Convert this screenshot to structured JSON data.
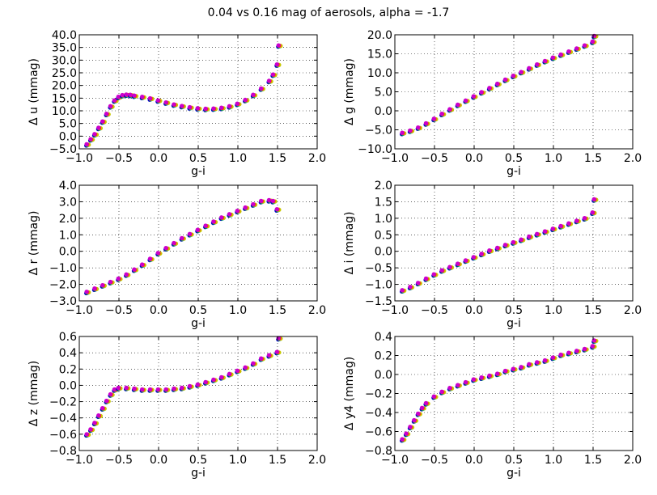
{
  "figure_title": "0.04 vs 0.16 mag of aerosols, alpha = -1.7",
  "colors": {
    "series": [
      "#0000cc",
      "#007f3f",
      "#00b2b2",
      "#c8c800",
      "#ff2020",
      "#cc00cc"
    ],
    "grid": "#000000",
    "axes": "#000000"
  },
  "chart_data": [
    {
      "type": "scatter",
      "xlabel": "g-i",
      "ylabel": "Δ u (mmag)",
      "xlim": [
        -1.0,
        2.0
      ],
      "ylim": [
        -5.0,
        40.0
      ],
      "xticks": [
        "−1.0",
        "−0.5",
        "0.0",
        "0.5",
        "1.0",
        "1.5",
        "2.0"
      ],
      "yticks": [
        "−5.0",
        "0.0",
        "5.0",
        "10.0",
        "15.0",
        "20.0",
        "25.0",
        "30.0",
        "35.0",
        "40.0"
      ],
      "grid": true,
      "points": [
        [
          -0.9,
          -3.5
        ],
        [
          -0.85,
          -1.5
        ],
        [
          -0.8,
          0.5
        ],
        [
          -0.75,
          3.0
        ],
        [
          -0.7,
          5.5
        ],
        [
          -0.65,
          8.5
        ],
        [
          -0.6,
          11.5
        ],
        [
          -0.55,
          13.8
        ],
        [
          -0.5,
          15.2
        ],
        [
          -0.45,
          15.9
        ],
        [
          -0.4,
          16.1
        ],
        [
          -0.35,
          16.0
        ],
        [
          -0.3,
          15.7
        ],
        [
          -0.2,
          15.2
        ],
        [
          -0.1,
          14.6
        ],
        [
          0.0,
          13.8
        ],
        [
          0.1,
          13.0
        ],
        [
          0.2,
          12.2
        ],
        [
          0.3,
          11.6
        ],
        [
          0.4,
          11.1
        ],
        [
          0.5,
          10.7
        ],
        [
          0.6,
          10.5
        ],
        [
          0.7,
          10.6
        ],
        [
          0.8,
          10.9
        ],
        [
          0.9,
          11.5
        ],
        [
          1.0,
          12.5
        ],
        [
          1.1,
          14.0
        ],
        [
          1.2,
          16.0
        ],
        [
          1.3,
          18.5
        ],
        [
          1.4,
          21.5
        ],
        [
          1.45,
          24.0
        ],
        [
          1.5,
          28.0
        ],
        [
          1.52,
          35.5
        ]
      ]
    },
    {
      "type": "scatter",
      "xlabel": "g-i",
      "ylabel": "Δ g (mmag)",
      "xlim": [
        -1.0,
        2.0
      ],
      "ylim": [
        -10.0,
        20.0
      ],
      "xticks": [
        "−1.0",
        "−0.5",
        "0.0",
        "0.5",
        "1.0",
        "1.5",
        "2.0"
      ],
      "yticks": [
        "−10.0",
        "−5.0",
        "0.0",
        "5.0",
        "10.0",
        "15.0",
        "20.0"
      ],
      "grid": true,
      "points": [
        [
          -0.9,
          -6.0
        ],
        [
          -0.8,
          -5.4
        ],
        [
          -0.7,
          -4.6
        ],
        [
          -0.6,
          -3.5
        ],
        [
          -0.5,
          -2.3
        ],
        [
          -0.4,
          -1.0
        ],
        [
          -0.3,
          0.2
        ],
        [
          -0.2,
          1.4
        ],
        [
          -0.1,
          2.5
        ],
        [
          0.0,
          3.6
        ],
        [
          0.1,
          4.7
        ],
        [
          0.2,
          5.8
        ],
        [
          0.3,
          6.9
        ],
        [
          0.4,
          8.0
        ],
        [
          0.5,
          9.0
        ],
        [
          0.6,
          10.0
        ],
        [
          0.7,
          11.0
        ],
        [
          0.8,
          12.0
        ],
        [
          0.9,
          12.9
        ],
        [
          1.0,
          13.8
        ],
        [
          1.1,
          14.6
        ],
        [
          1.2,
          15.4
        ],
        [
          1.3,
          16.2
        ],
        [
          1.4,
          17.0
        ],
        [
          1.5,
          18.0
        ],
        [
          1.52,
          19.5
        ]
      ]
    },
    {
      "type": "scatter",
      "xlabel": "g-i",
      "ylabel": "Δ r (mmag)",
      "xlim": [
        -1.0,
        2.0
      ],
      "ylim": [
        -3.0,
        4.0
      ],
      "xticks": [
        "−1.0",
        "−0.5",
        "0.0",
        "0.5",
        "1.0",
        "1.5",
        "2.0"
      ],
      "yticks": [
        "−3.0",
        "−2.0",
        "−1.0",
        "0.0",
        "1.0",
        "2.0",
        "3.0",
        "4.0"
      ],
      "grid": true,
      "points": [
        [
          -0.9,
          -2.5
        ],
        [
          -0.8,
          -2.3
        ],
        [
          -0.7,
          -2.1
        ],
        [
          -0.6,
          -1.9
        ],
        [
          -0.5,
          -1.7
        ],
        [
          -0.4,
          -1.45
        ],
        [
          -0.3,
          -1.15
        ],
        [
          -0.2,
          -0.85
        ],
        [
          -0.1,
          -0.5
        ],
        [
          0.0,
          -0.15
        ],
        [
          0.1,
          0.15
        ],
        [
          0.2,
          0.45
        ],
        [
          0.3,
          0.75
        ],
        [
          0.4,
          1.0
        ],
        [
          0.5,
          1.25
        ],
        [
          0.6,
          1.5
        ],
        [
          0.7,
          1.75
        ],
        [
          0.8,
          2.0
        ],
        [
          0.9,
          2.2
        ],
        [
          1.0,
          2.4
        ],
        [
          1.1,
          2.6
        ],
        [
          1.2,
          2.8
        ],
        [
          1.3,
          3.0
        ],
        [
          1.4,
          3.05
        ],
        [
          1.45,
          3.0
        ],
        [
          1.5,
          2.5
        ]
      ]
    },
    {
      "type": "scatter",
      "xlabel": "g-i",
      "ylabel": "Δ i (mmag)",
      "xlim": [
        -1.0,
        2.0
      ],
      "ylim": [
        -1.5,
        2.0
      ],
      "xticks": [
        "−1.0",
        "−0.5",
        "0.0",
        "0.5",
        "1.0",
        "1.5",
        "2.0"
      ],
      "yticks": [
        "−1.5",
        "−1.0",
        "−0.5",
        "0.0",
        "0.5",
        "1.0",
        "1.5",
        "2.0"
      ],
      "grid": true,
      "points": [
        [
          -0.9,
          -1.2
        ],
        [
          -0.8,
          -1.1
        ],
        [
          -0.7,
          -0.98
        ],
        [
          -0.6,
          -0.85
        ],
        [
          -0.5,
          -0.72
        ],
        [
          -0.4,
          -0.6
        ],
        [
          -0.3,
          -0.5
        ],
        [
          -0.2,
          -0.4
        ],
        [
          -0.1,
          -0.3
        ],
        [
          0.0,
          -0.2
        ],
        [
          0.1,
          -0.1
        ],
        [
          0.2,
          0.0
        ],
        [
          0.3,
          0.08
        ],
        [
          0.4,
          0.17
        ],
        [
          0.5,
          0.25
        ],
        [
          0.6,
          0.33
        ],
        [
          0.7,
          0.42
        ],
        [
          0.8,
          0.5
        ],
        [
          0.9,
          0.58
        ],
        [
          1.0,
          0.66
        ],
        [
          1.1,
          0.74
        ],
        [
          1.2,
          0.82
        ],
        [
          1.3,
          0.9
        ],
        [
          1.4,
          0.98
        ],
        [
          1.5,
          1.15
        ],
        [
          1.52,
          1.55
        ]
      ]
    },
    {
      "type": "scatter",
      "xlabel": "g-i",
      "ylabel": "Δ z (mmag)",
      "xlim": [
        -1.0,
        2.0
      ],
      "ylim": [
        -0.8,
        0.6
      ],
      "xticks": [
        "−1.0",
        "−0.5",
        "0.0",
        "0.5",
        "1.0",
        "1.5",
        "2.0"
      ],
      "yticks": [
        "−0.8",
        "−0.6",
        "−0.4",
        "−0.2",
        "0.0",
        "0.2",
        "0.4",
        "0.6"
      ],
      "grid": true,
      "points": [
        [
          -0.9,
          -0.61
        ],
        [
          -0.85,
          -0.55
        ],
        [
          -0.8,
          -0.47
        ],
        [
          -0.75,
          -0.38
        ],
        [
          -0.7,
          -0.29
        ],
        [
          -0.65,
          -0.2
        ],
        [
          -0.6,
          -0.12
        ],
        [
          -0.55,
          -0.06
        ],
        [
          -0.5,
          -0.04
        ],
        [
          -0.4,
          -0.04
        ],
        [
          -0.3,
          -0.05
        ],
        [
          -0.2,
          -0.06
        ],
        [
          -0.1,
          -0.06
        ],
        [
          0.0,
          -0.06
        ],
        [
          0.1,
          -0.06
        ],
        [
          0.2,
          -0.05
        ],
        [
          0.3,
          -0.04
        ],
        [
          0.4,
          -0.02
        ],
        [
          0.5,
          0.0
        ],
        [
          0.6,
          0.03
        ],
        [
          0.7,
          0.06
        ],
        [
          0.8,
          0.09
        ],
        [
          0.9,
          0.13
        ],
        [
          1.0,
          0.17
        ],
        [
          1.1,
          0.21
        ],
        [
          1.2,
          0.26
        ],
        [
          1.3,
          0.32
        ],
        [
          1.4,
          0.36
        ],
        [
          1.5,
          0.4
        ],
        [
          1.52,
          0.57
        ]
      ]
    },
    {
      "type": "scatter",
      "xlabel": "g-i",
      "ylabel": "Δ y4 (mmag)",
      "xlim": [
        -1.0,
        2.0
      ],
      "ylim": [
        -0.8,
        0.4
      ],
      "xticks": [
        "−1.0",
        "−0.5",
        "0.0",
        "0.5",
        "1.0",
        "1.5",
        "2.0"
      ],
      "yticks": [
        "−0.8",
        "−0.6",
        "−0.4",
        "−0.2",
        "0.0",
        "0.2",
        "0.4"
      ],
      "grid": true,
      "points": [
        [
          -0.9,
          -0.69
        ],
        [
          -0.85,
          -0.63
        ],
        [
          -0.8,
          -0.56
        ],
        [
          -0.75,
          -0.49
        ],
        [
          -0.7,
          -0.42
        ],
        [
          -0.65,
          -0.36
        ],
        [
          -0.6,
          -0.31
        ],
        [
          -0.5,
          -0.24
        ],
        [
          -0.4,
          -0.19
        ],
        [
          -0.3,
          -0.15
        ],
        [
          -0.2,
          -0.12
        ],
        [
          -0.1,
          -0.09
        ],
        [
          0.0,
          -0.06
        ],
        [
          0.1,
          -0.04
        ],
        [
          0.2,
          -0.02
        ],
        [
          0.3,
          0.0
        ],
        [
          0.4,
          0.03
        ],
        [
          0.5,
          0.05
        ],
        [
          0.6,
          0.07
        ],
        [
          0.7,
          0.1
        ],
        [
          0.8,
          0.12
        ],
        [
          0.9,
          0.14
        ],
        [
          1.0,
          0.17
        ],
        [
          1.1,
          0.2
        ],
        [
          1.2,
          0.22
        ],
        [
          1.3,
          0.24
        ],
        [
          1.4,
          0.26
        ],
        [
          1.5,
          0.29
        ],
        [
          1.52,
          0.35
        ]
      ]
    }
  ]
}
